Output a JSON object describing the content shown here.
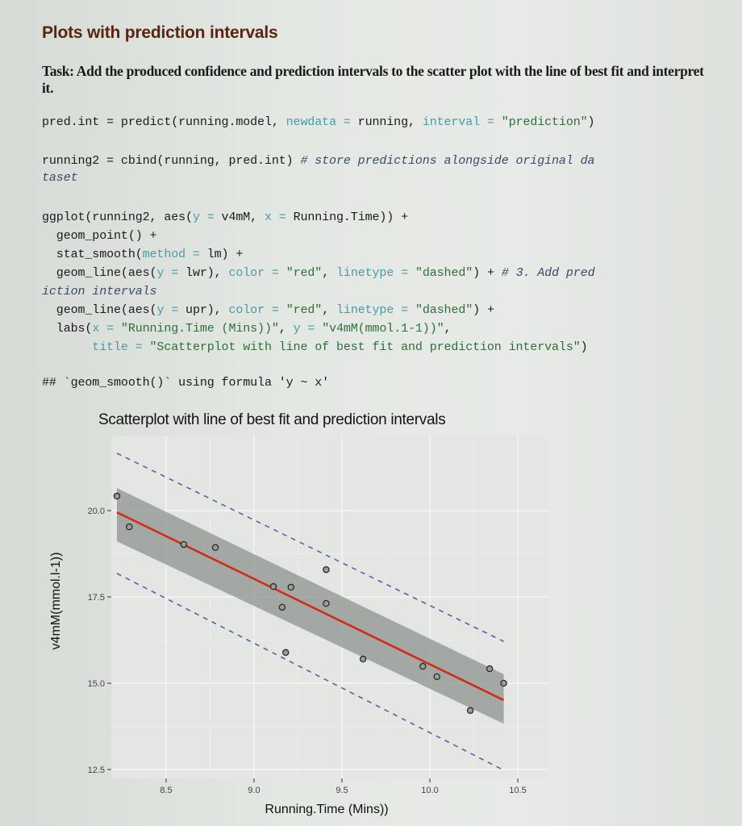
{
  "document": {
    "heading": "Plots with prediction intervals",
    "task": "Task: Add the produced confidence and prediction intervals to the scatter plot with the line of best fit and interpret it."
  },
  "code": {
    "line1": {
      "a": "pred.int = predict(running.model, ",
      "b": "newdata = ",
      "c": "running, ",
      "d": "interval = ",
      "e": "\"prediction\"",
      "f": ")"
    },
    "line2": {
      "a": "running2 = cbind(running, pred.int) ",
      "b": "# store predictions alongside original da",
      "c": "taset"
    },
    "block": {
      "l1a": "ggplot(running2, aes(",
      "l1b": "y = ",
      "l1c": "v4mM, ",
      "l1d": "x = ",
      "l1e": "Running.Time)) +",
      "l2": "  geom_point() +",
      "l3a": "  stat_smooth(",
      "l3b": "method = ",
      "l3c": "lm) +",
      "l4a": "  geom_line(aes(",
      "l4b": "y = ",
      "l4c": "lwr), ",
      "l4d": "color = ",
      "l4e": "\"red\"",
      "l4f": ", ",
      "l4g": "linetype = ",
      "l4h": "\"dashed\"",
      "l4i": ") + ",
      "l4j": "# 3. Add pred",
      "l5": "iction intervals",
      "l6a": "  geom_line(aes(",
      "l6b": "y = ",
      "l6c": "upr), ",
      "l6d": "color = ",
      "l6e": "\"red\"",
      "l6f": ", ",
      "l6g": "linetype = ",
      "l6h": "\"dashed\"",
      "l6i": ") +",
      "l7a": "  labs(",
      "l7b": "x = ",
      "l7c": "\"Running.Time (Mins))\"",
      "l7d": ", ",
      "l7e": "y = ",
      "l7f": "\"v4mM(mmol.1-1))\"",
      "l7g": ",",
      "l8a": "       title = ",
      "l8b": "\"Scatterplot with line of best fit and prediction intervals\"",
      "l8c": ")"
    },
    "message": "## `geom_smooth()` using formula 'y ~ x'"
  },
  "colors": {
    "heading": "#5a2410",
    "fit_line": "#d42a1a",
    "ci_band": "#8f9390",
    "prediction_lines": "#5a5fa8",
    "points": "#2a2a2a"
  },
  "chart_data": {
    "type": "scatter",
    "title": "Scatterplot with line of best fit and prediction intervals",
    "xlabel": "Running.Time (Mins))",
    "ylabel": "v4mM(mmol.l-1))",
    "x_ticks": [
      "8.5",
      "9.0",
      "9.5",
      "10.0",
      "10.5"
    ],
    "y_ticks": [
      "12.5",
      "15.0",
      "17.5",
      "20.0"
    ],
    "xlim": [
      8.17,
      10.65
    ],
    "ylim": [
      12.2,
      21.9
    ],
    "grid": true,
    "legend": "none",
    "points": [
      {
        "x": 8.22,
        "y": 20.42
      },
      {
        "x": 8.29,
        "y": 19.53
      },
      {
        "x": 8.6,
        "y": 19.02
      },
      {
        "x": 8.78,
        "y": 18.93
      },
      {
        "x": 9.11,
        "y": 17.8
      },
      {
        "x": 9.16,
        "y": 17.2
      },
      {
        "x": 9.18,
        "y": 15.89
      },
      {
        "x": 9.21,
        "y": 17.78
      },
      {
        "x": 9.41,
        "y": 18.29
      },
      {
        "x": 9.41,
        "y": 17.31
      },
      {
        "x": 9.62,
        "y": 15.7
      },
      {
        "x": 9.96,
        "y": 15.49
      },
      {
        "x": 10.04,
        "y": 15.19
      },
      {
        "x": 10.23,
        "y": 14.21
      },
      {
        "x": 10.34,
        "y": 15.42
      },
      {
        "x": 10.42,
        "y": 15.0
      }
    ],
    "fit_line": {
      "x": [
        8.22,
        10.42
      ],
      "y": [
        19.95,
        14.51
      ]
    },
    "confidence_band": {
      "x": [
        8.22,
        10.42
      ],
      "upper": [
        20.65,
        15.26
      ],
      "lower": [
        19.11,
        13.83
      ]
    },
    "prediction_interval": {
      "x": [
        8.22,
        10.42
      ],
      "upr": [
        21.66,
        16.21
      ],
      "lwr": [
        18.18,
        12.48
      ]
    }
  }
}
